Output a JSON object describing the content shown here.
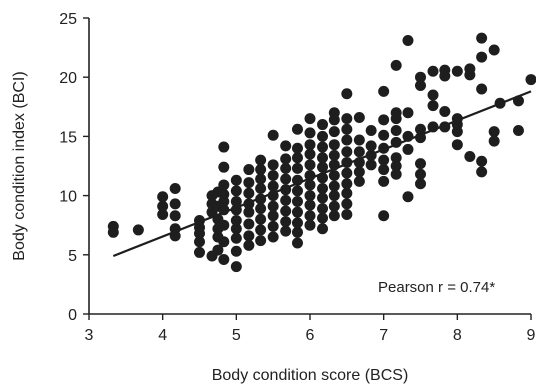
{
  "chart_data": {
    "type": "scatter",
    "xlabel": "Body condition score (BCS)",
    "ylabel": "Body condition index (BCI)",
    "xlim": [
      3,
      9
    ],
    "ylim": [
      0,
      25
    ],
    "xticks": [
      3,
      4,
      5,
      6,
      7,
      8,
      9
    ],
    "yticks": [
      0,
      5,
      10,
      15,
      20,
      25
    ],
    "annotation": "Pearson r = 0.74*",
    "trendline": {
      "x": [
        3.33,
        9.0
      ],
      "y": [
        4.9,
        18.8
      ]
    },
    "series": [
      {
        "points": [
          [
            3.33,
            7.4
          ],
          [
            3.33,
            6.9
          ],
          [
            3.67,
            7.1
          ],
          [
            4.0,
            9.9
          ],
          [
            4.0,
            9.1
          ],
          [
            4.0,
            8.4
          ],
          [
            4.17,
            10.6
          ],
          [
            4.17,
            9.3
          ],
          [
            4.17,
            8.3
          ],
          [
            4.17,
            7.2
          ],
          [
            4.17,
            6.6
          ],
          [
            4.5,
            7.9
          ],
          [
            4.5,
            7.3
          ],
          [
            4.5,
            6.8
          ],
          [
            4.5,
            6.1
          ],
          [
            4.5,
            5.2
          ],
          [
            4.67,
            10.0
          ],
          [
            4.67,
            9.3
          ],
          [
            4.67,
            8.6
          ],
          [
            4.67,
            4.9
          ],
          [
            4.75,
            10.3
          ],
          [
            4.75,
            9.1
          ],
          [
            4.75,
            8.0
          ],
          [
            4.75,
            7.2
          ],
          [
            4.75,
            6.5
          ],
          [
            4.75,
            5.4
          ],
          [
            4.83,
            14.1
          ],
          [
            4.83,
            12.4
          ],
          [
            4.83,
            10.9
          ],
          [
            4.83,
            10.1
          ],
          [
            4.83,
            9.5
          ],
          [
            4.83,
            8.8
          ],
          [
            4.83,
            7.5
          ],
          [
            4.83,
            6.1
          ],
          [
            4.83,
            4.6
          ],
          [
            5.0,
            11.3
          ],
          [
            5.0,
            10.4
          ],
          [
            5.0,
            9.5
          ],
          [
            5.0,
            8.8
          ],
          [
            5.0,
            7.9
          ],
          [
            5.0,
            7.2
          ],
          [
            5.0,
            6.4
          ],
          [
            5.0,
            5.3
          ],
          [
            5.0,
            4.0
          ],
          [
            5.17,
            12.2
          ],
          [
            5.17,
            11.1
          ],
          [
            5.17,
            10.2
          ],
          [
            5.17,
            9.3
          ],
          [
            5.17,
            8.6
          ],
          [
            5.17,
            7.6
          ],
          [
            5.17,
            6.6
          ],
          [
            5.17,
            5.8
          ],
          [
            5.33,
            13.0
          ],
          [
            5.33,
            12.2
          ],
          [
            5.33,
            11.4
          ],
          [
            5.33,
            10.6
          ],
          [
            5.33,
            9.7
          ],
          [
            5.33,
            8.9
          ],
          [
            5.33,
            8.0
          ],
          [
            5.33,
            7.1
          ],
          [
            5.33,
            6.2
          ],
          [
            5.5,
            15.1
          ],
          [
            5.5,
            12.6
          ],
          [
            5.5,
            11.7
          ],
          [
            5.5,
            10.8
          ],
          [
            5.5,
            10.0
          ],
          [
            5.5,
            9.1
          ],
          [
            5.5,
            8.3
          ],
          [
            5.5,
            7.4
          ],
          [
            5.5,
            6.5
          ],
          [
            5.67,
            14.2
          ],
          [
            5.67,
            13.1
          ],
          [
            5.67,
            12.3
          ],
          [
            5.67,
            11.4
          ],
          [
            5.67,
            10.5
          ],
          [
            5.67,
            9.6
          ],
          [
            5.67,
            8.7
          ],
          [
            5.67,
            7.8
          ],
          [
            5.67,
            7.0
          ],
          [
            5.83,
            15.6
          ],
          [
            5.83,
            14.0
          ],
          [
            5.83,
            13.2
          ],
          [
            5.83,
            12.3
          ],
          [
            5.83,
            11.3
          ],
          [
            5.83,
            10.4
          ],
          [
            5.83,
            9.5
          ],
          [
            5.83,
            8.6
          ],
          [
            5.83,
            7.7
          ],
          [
            5.83,
            6.9
          ],
          [
            5.83,
            6.0
          ],
          [
            6.0,
            16.5
          ],
          [
            6.0,
            15.3
          ],
          [
            6.0,
            14.3
          ],
          [
            6.0,
            13.5
          ],
          [
            6.0,
            12.6
          ],
          [
            6.0,
            11.7
          ],
          [
            6.0,
            10.9
          ],
          [
            6.0,
            10.0
          ],
          [
            6.0,
            9.2
          ],
          [
            6.0,
            8.3
          ],
          [
            6.0,
            7.5
          ],
          [
            6.17,
            16.0
          ],
          [
            6.17,
            15.0
          ],
          [
            6.17,
            14.1
          ],
          [
            6.17,
            13.2
          ],
          [
            6.17,
            12.4
          ],
          [
            6.17,
            11.5
          ],
          [
            6.17,
            10.6
          ],
          [
            6.17,
            9.8
          ],
          [
            6.17,
            8.9
          ],
          [
            6.17,
            8.1
          ],
          [
            6.17,
            7.2
          ],
          [
            6.33,
            17.0
          ],
          [
            6.33,
            16.4
          ],
          [
            6.33,
            15.4
          ],
          [
            6.33,
            14.3
          ],
          [
            6.33,
            13.4
          ],
          [
            6.33,
            12.6
          ],
          [
            6.33,
            11.7
          ],
          [
            6.33,
            10.8
          ],
          [
            6.33,
            10.0
          ],
          [
            6.33,
            9.1
          ],
          [
            6.33,
            8.3
          ],
          [
            6.5,
            18.6
          ],
          [
            6.5,
            16.5
          ],
          [
            6.5,
            15.6
          ],
          [
            6.5,
            14.7
          ],
          [
            6.5,
            13.7
          ],
          [
            6.5,
            12.8
          ],
          [
            6.5,
            11.9
          ],
          [
            6.5,
            11.0
          ],
          [
            6.5,
            10.2
          ],
          [
            6.5,
            9.3
          ],
          [
            6.5,
            8.4
          ],
          [
            6.67,
            16.6
          ],
          [
            6.67,
            14.7
          ],
          [
            6.67,
            13.7
          ],
          [
            6.67,
            12.8
          ],
          [
            6.67,
            12.0
          ],
          [
            6.67,
            11.2
          ],
          [
            6.83,
            15.5
          ],
          [
            6.83,
            14.2
          ],
          [
            6.83,
            13.4
          ],
          [
            6.83,
            12.6
          ],
          [
            7.0,
            18.8
          ],
          [
            7.0,
            16.4
          ],
          [
            7.0,
            15.1
          ],
          [
            7.0,
            14.0
          ],
          [
            7.0,
            13.0
          ],
          [
            7.0,
            12.2
          ],
          [
            7.0,
            11.2
          ],
          [
            7.0,
            8.3
          ],
          [
            7.17,
            21.0
          ],
          [
            7.17,
            17.0
          ],
          [
            7.17,
            16.5
          ],
          [
            7.17,
            15.5
          ],
          [
            7.17,
            14.5
          ],
          [
            7.17,
            13.2
          ],
          [
            7.17,
            12.5
          ],
          [
            7.17,
            11.8
          ],
          [
            7.33,
            23.1
          ],
          [
            7.33,
            17.0
          ],
          [
            7.33,
            15.0
          ],
          [
            7.33,
            13.9
          ],
          [
            7.33,
            9.9
          ],
          [
            7.5,
            20.0
          ],
          [
            7.5,
            19.3
          ],
          [
            7.5,
            15.6
          ],
          [
            7.5,
            14.9
          ],
          [
            7.5,
            12.7
          ],
          [
            7.5,
            11.8
          ],
          [
            7.5,
            11.0
          ],
          [
            7.67,
            18.5
          ],
          [
            7.67,
            17.6
          ],
          [
            7.67,
            15.8
          ],
          [
            7.67,
            20.5
          ],
          [
            7.83,
            20.6
          ],
          [
            7.83,
            15.8
          ],
          [
            7.83,
            17.1
          ],
          [
            7.83,
            20.1
          ],
          [
            8.0,
            20.5
          ],
          [
            8.0,
            16.5
          ],
          [
            8.0,
            16.0
          ],
          [
            8.0,
            15.4
          ],
          [
            8.0,
            14.3
          ],
          [
            8.17,
            20.7
          ],
          [
            8.17,
            20.2
          ],
          [
            8.17,
            13.3
          ],
          [
            8.33,
            23.3
          ],
          [
            8.33,
            21.7
          ],
          [
            8.33,
            19.0
          ],
          [
            8.33,
            12.9
          ],
          [
            8.33,
            12.0
          ],
          [
            8.5,
            22.3
          ],
          [
            8.5,
            15.4
          ],
          [
            8.5,
            14.6
          ],
          [
            8.58,
            17.8
          ],
          [
            8.83,
            18.0
          ],
          [
            8.83,
            15.5
          ],
          [
            9.0,
            19.8
          ]
        ]
      }
    ]
  }
}
